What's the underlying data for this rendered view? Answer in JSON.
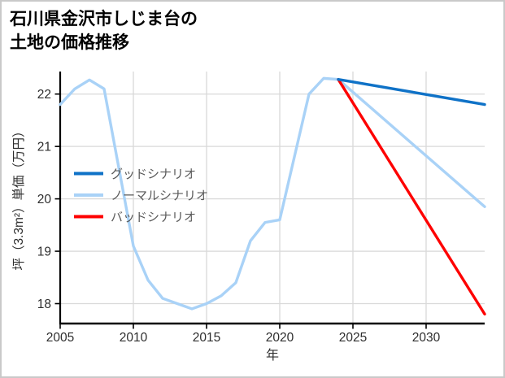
{
  "title": {
    "line1": "石川県金沢市しじま台の",
    "line2": "土地の価格推移"
  },
  "legend": {
    "items": [
      {
        "label": "グッドシナリオ",
        "color": "#0f72c7"
      },
      {
        "label": "ノーマルシナリオ",
        "color": "#a9d2f7"
      },
      {
        "label": "バッドシナリオ",
        "color": "#fe0000"
      }
    ]
  },
  "axes": {
    "xlabel": "年",
    "ylabel": "坪（3.3m²）単価（万円）",
    "xticks": [
      "2005",
      "2010",
      "2015",
      "2020",
      "2025",
      "2030"
    ],
    "yticks": [
      "18",
      "19",
      "20",
      "21",
      "22"
    ]
  },
  "colors": {
    "grid": "#d9d9d9",
    "spine": "#000000",
    "tick_text": "#2e2e2e",
    "legend_text": "#5a5a5a",
    "border": "#c9c9c9"
  },
  "chart_data": {
    "type": "line",
    "title": "石川県金沢市しじま台の土地の価格推移",
    "xlabel": "年",
    "ylabel": "坪（3.3m²）単価（万円）",
    "xlim": [
      2005,
      2034
    ],
    "ylim": [
      17.62,
      22.43
    ],
    "xticks": [
      2005,
      2010,
      2015,
      2020,
      2025,
      2030
    ],
    "yticks": [
      18,
      19,
      20,
      21,
      22
    ],
    "grid": true,
    "legend_position": "center-left",
    "series": [
      {
        "name": "ノーマルシナリオ",
        "color": "#a9d2f7",
        "role": "historical+normal-forecast",
        "x": [
          2005,
          2006,
          2007,
          2008,
          2009,
          2010,
          2011,
          2012,
          2013,
          2014,
          2015,
          2016,
          2017,
          2018,
          2019,
          2020,
          2021,
          2022,
          2023,
          2024,
          2034
        ],
        "y": [
          21.8,
          22.1,
          22.27,
          22.1,
          20.6,
          19.1,
          18.45,
          18.1,
          18.0,
          17.9,
          18.0,
          18.15,
          18.4,
          19.2,
          19.55,
          19.6,
          20.8,
          22.0,
          22.3,
          22.28,
          19.85
        ]
      },
      {
        "name": "バッドシナリオ",
        "color": "#fe0000",
        "role": "bad-forecast",
        "x": [
          2024,
          2034
        ],
        "y": [
          22.28,
          17.8
        ]
      },
      {
        "name": "グッドシナリオ",
        "color": "#0f72c7",
        "role": "good-forecast",
        "x": [
          2024,
          2034
        ],
        "y": [
          22.28,
          21.8
        ]
      }
    ]
  }
}
